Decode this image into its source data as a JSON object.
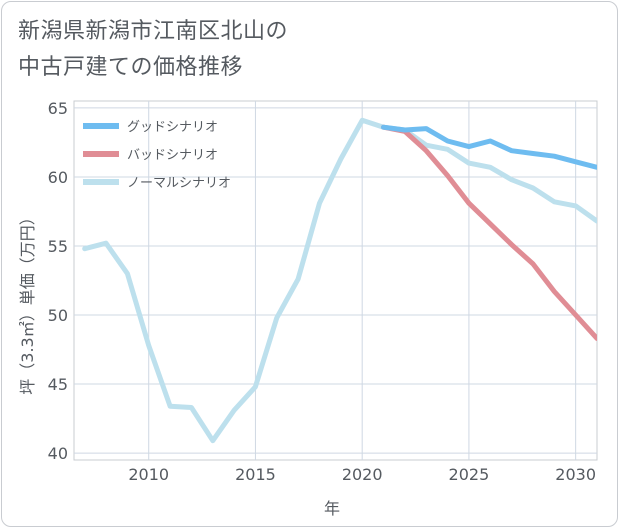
{
  "title_line1": "新潟県新潟市江南区北山の",
  "title_line2": "中古戸建ての価格推移",
  "chart_data": {
    "type": "line",
    "title": "新潟県新潟市江南区北山の中古戸建ての価格推移",
    "xlabel": "年",
    "ylabel": "坪（3.3㎡）単価（万円）",
    "xlim": [
      2006.5,
      2031
    ],
    "ylim": [
      39.5,
      65.5
    ],
    "xticks": [
      2010,
      2015,
      2020,
      2025,
      2030
    ],
    "yticks": [
      40,
      45,
      50,
      55,
      60,
      65
    ],
    "grid": true,
    "legend_position": "top-left",
    "series": [
      {
        "name": "グッドシナリオ",
        "color": "#6ebcf0",
        "points": [
          [
            2021,
            63.6
          ],
          [
            2022,
            63.4
          ],
          [
            2023,
            63.5
          ],
          [
            2024,
            62.6
          ],
          [
            2025,
            62.2
          ],
          [
            2026,
            62.6
          ],
          [
            2027,
            61.9
          ],
          [
            2028,
            61.7
          ],
          [
            2029,
            61.5
          ],
          [
            2030,
            61.1
          ],
          [
            2031,
            60.7
          ]
        ]
      },
      {
        "name": "バッドシナリオ",
        "color": "#e08d95",
        "points": [
          [
            2021,
            63.6
          ],
          [
            2022,
            63.3
          ],
          [
            2023,
            61.9
          ],
          [
            2024,
            60.1
          ],
          [
            2025,
            58.1
          ],
          [
            2026,
            56.6
          ],
          [
            2027,
            55.1
          ],
          [
            2028,
            53.7
          ],
          [
            2029,
            51.7
          ],
          [
            2030,
            50.0
          ],
          [
            2031,
            48.3
          ]
        ]
      },
      {
        "name": "ノーマルシナリオ",
        "color": "#bde0ed",
        "points": [
          [
            2007,
            54.8
          ],
          [
            2008,
            55.2
          ],
          [
            2009,
            53.0
          ],
          [
            2010,
            47.8
          ],
          [
            2011,
            43.4
          ],
          [
            2012,
            43.3
          ],
          [
            2013,
            40.9
          ],
          [
            2014,
            43.1
          ],
          [
            2015,
            44.8
          ],
          [
            2016,
            49.8
          ],
          [
            2017,
            52.6
          ],
          [
            2018,
            58.1
          ],
          [
            2019,
            61.3
          ],
          [
            2020,
            64.1
          ],
          [
            2021,
            63.6
          ],
          [
            2022,
            63.4
          ],
          [
            2023,
            62.3
          ],
          [
            2024,
            62.0
          ],
          [
            2025,
            61.0
          ],
          [
            2026,
            60.7
          ],
          [
            2027,
            59.8
          ],
          [
            2028,
            59.2
          ],
          [
            2029,
            58.2
          ],
          [
            2030,
            57.9
          ],
          [
            2031,
            56.8
          ]
        ]
      }
    ]
  }
}
